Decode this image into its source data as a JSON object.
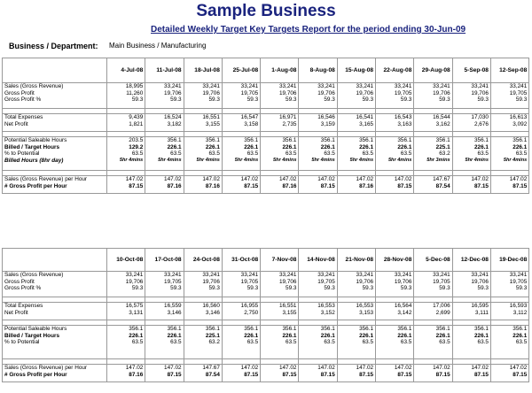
{
  "header": {
    "title": "Sample Business",
    "subtitle": "Detailed Weekly Target Key Targets Report for the period ending 30-Jun-09",
    "dept_label": "Business / Department:",
    "dept_value": "Main Business / Manufacturing"
  },
  "labels": {
    "sales": "Sales (Gross Revenue)",
    "gross_profit": "Gross Profit",
    "gross_profit_pct": "Gross Profit %",
    "total_expenses": "Total Expenses",
    "net_profit": "Net Profit",
    "potential_hours": "Potential Saleable Hours",
    "billed_target": "Billed / Target Hours",
    "pct_potential": "% to Potential",
    "billed_hours": "Billed Hours (8hr day)",
    "sales_per_hour": "Sales (Gross Revenue) per Hour",
    "gp_per_hour": "# Gross Profit per Hour"
  },
  "labels2": {
    "sales": "Sales (Gross Revenue)",
    "gross_profit": "Gross Profit",
    "gross_profit_pct": "Gross Profit %",
    "total_expenses": "Total Expenses",
    "net_profit": "Net Profit",
    "potential_hours": "Potential Saleable Hours",
    "billed_target": "Billed / Target Hours",
    "pct_potential": "% to Potential",
    "billed_hours": "",
    "sales_per_hour": "Sales (Gross Revenue) per Hour",
    "gp_per_hour": "# Gross Profit per Hour"
  },
  "table1": [
    {
      "date": "4-Jul-08",
      "sales": "18,995",
      "gp": "11,260",
      "gp_pct": "59.3",
      "exp": "9,439",
      "net": "1,821",
      "pot": "203.5",
      "billed": "129.2",
      "pct": "63.5",
      "bh": "5hr 4mins",
      "sph": "147.02",
      "gph": "87.15"
    },
    {
      "date": "11-Jul-08",
      "sales": "33,241",
      "gp": "19,706",
      "gp_pct": "59.3",
      "exp": "16,524",
      "net": "3,182",
      "pot": "356.1",
      "billed": "226.1",
      "pct": "63.5",
      "bh": "5hr 4mins",
      "sph": "147.02",
      "gph": "87.16"
    },
    {
      "date": "18-Jul-08",
      "sales": "33,241",
      "gp": "19,706",
      "gp_pct": "59.3",
      "exp": "16,551",
      "net": "3,155",
      "pot": "356.1",
      "billed": "226.1",
      "pct": "63.5",
      "bh": "5hr 4mins",
      "sph": "147.02",
      "gph": "87.16"
    },
    {
      "date": "25-Jul-08",
      "sales": "33,241",
      "gp": "19,705",
      "gp_pct": "59.3",
      "exp": "16,547",
      "net": "3,158",
      "pot": "356.1",
      "billed": "226.1",
      "pct": "63.5",
      "bh": "5hr 4mins",
      "sph": "147.02",
      "gph": "87.15"
    },
    {
      "date": "1-Aug-08",
      "sales": "33,241",
      "gp": "19,706",
      "gp_pct": "59.3",
      "exp": "16,971",
      "net": "2,735",
      "pot": "356.1",
      "billed": "226.1",
      "pct": "63.5",
      "bh": "5hr 4mins",
      "sph": "147.02",
      "gph": "87.16"
    },
    {
      "date": "8-Aug-08",
      "sales": "33,241",
      "gp": "19,706",
      "gp_pct": "59.3",
      "exp": "16,546",
      "net": "3,159",
      "pot": "356.1",
      "billed": "226.1",
      "pct": "63.5",
      "bh": "5hr 4mins",
      "sph": "147.02",
      "gph": "87.15"
    },
    {
      "date": "15-Aug-08",
      "sales": "33,241",
      "gp": "19,706",
      "gp_pct": "59.3",
      "exp": "16,541",
      "net": "3,165",
      "pot": "356.1",
      "billed": "226.1",
      "pct": "63.5",
      "bh": "5hr 4mins",
      "sph": "147.02",
      "gph": "87.16"
    },
    {
      "date": "22-Aug-08",
      "sales": "33,241",
      "gp": "19,705",
      "gp_pct": "59.3",
      "exp": "16,543",
      "net": "3,163",
      "pot": "356.1",
      "billed": "226.1",
      "pct": "63.5",
      "bh": "5hr 4mins",
      "sph": "147.02",
      "gph": "87.15"
    },
    {
      "date": "29-Aug-08",
      "sales": "33,241",
      "gp": "19,706",
      "gp_pct": "59.3",
      "exp": "16,544",
      "net": "3,162",
      "pot": "356.1",
      "billed": "225.1",
      "pct": "63.2",
      "bh": "5hr 3mins",
      "sph": "147.67",
      "gph": "87.54"
    },
    {
      "date": "5-Sep-08",
      "sales": "33,241",
      "gp": "19,706",
      "gp_pct": "59.3",
      "exp": "17,030",
      "net": "2,676",
      "pot": "356.1",
      "billed": "226.1",
      "pct": "63.5",
      "bh": "5hr 4mins",
      "sph": "147.02",
      "gph": "87.15"
    },
    {
      "date": "12-Sep-08",
      "sales": "33,241",
      "gp": "19,705",
      "gp_pct": "59.3",
      "exp": "16,613",
      "net": "3,092",
      "pot": "356.1",
      "billed": "226.1",
      "pct": "63.5",
      "bh": "5hr 4mins",
      "sph": "147.02",
      "gph": "87.15"
    }
  ],
  "table2": [
    {
      "date": "10-Oct-08",
      "sales": "33,241",
      "gp": "19,706",
      "gp_pct": "59.3",
      "exp": "16,575",
      "net": "3,131",
      "pot": "356.1",
      "billed": "226.1",
      "pct": "63.5",
      "bh": "",
      "sph": "147.02",
      "gph": "87.16"
    },
    {
      "date": "17-Oct-08",
      "sales": "33,241",
      "gp": "19,705",
      "gp_pct": "59.3",
      "exp": "16,559",
      "net": "3,146",
      "pot": "356.1",
      "billed": "226.1",
      "pct": "63.5",
      "bh": "",
      "sph": "147.02",
      "gph": "87.15"
    },
    {
      "date": "24-Oct-08",
      "sales": "33,241",
      "gp": "19,706",
      "gp_pct": "59.3",
      "exp": "16,560",
      "net": "3,146",
      "pot": "356.1",
      "billed": "225.1",
      "pct": "63.2",
      "bh": "",
      "sph": "147.67",
      "gph": "87.54"
    },
    {
      "date": "31-Oct-08",
      "sales": "33,241",
      "gp": "19,705",
      "gp_pct": "59.3",
      "exp": "16,955",
      "net": "2,750",
      "pot": "356.1",
      "billed": "226.1",
      "pct": "63.5",
      "bh": "",
      "sph": "147.02",
      "gph": "87.15"
    },
    {
      "date": "7-Nov-08",
      "sales": "33,241",
      "gp": "19,706",
      "gp_pct": "59.3",
      "exp": "16,551",
      "net": "3,155",
      "pot": "356.1",
      "billed": "226.1",
      "pct": "63.5",
      "bh": "",
      "sph": "147.02",
      "gph": "87.15"
    },
    {
      "date": "14-Nov-08",
      "sales": "33,241",
      "gp": "19,705",
      "gp_pct": "59.3",
      "exp": "16,553",
      "net": "3,152",
      "pot": "356.1",
      "billed": "226.1",
      "pct": "63.5",
      "bh": "",
      "sph": "147.02",
      "gph": "87.15"
    },
    {
      "date": "21-Nov-08",
      "sales": "33,241",
      "gp": "19,706",
      "gp_pct": "59.3",
      "exp": "16,553",
      "net": "3,153",
      "pot": "356.1",
      "billed": "226.1",
      "pct": "63.5",
      "bh": "",
      "sph": "147.02",
      "gph": "87.15"
    },
    {
      "date": "28-Nov-08",
      "sales": "33,241",
      "gp": "19,706",
      "gp_pct": "59.3",
      "exp": "16,564",
      "net": "3,142",
      "pot": "356.1",
      "billed": "226.1",
      "pct": "63.5",
      "bh": "",
      "sph": "147.02",
      "gph": "87.15"
    },
    {
      "date": "5-Dec-08",
      "sales": "33,241",
      "gp": "19,705",
      "gp_pct": "59.3",
      "exp": "17,006",
      "net": "2,699",
      "pot": "356.1",
      "billed": "226.1",
      "pct": "63.5",
      "bh": "",
      "sph": "147.02",
      "gph": "87.15"
    },
    {
      "date": "12-Dec-08",
      "sales": "33,241",
      "gp": "19,706",
      "gp_pct": "59.3",
      "exp": "16,595",
      "net": "3,111",
      "pot": "356.1",
      "billed": "226.1",
      "pct": "63.5",
      "bh": "",
      "sph": "147.02",
      "gph": "87.15"
    },
    {
      "date": "19-Dec-08",
      "sales": "33,241",
      "gp": "19,705",
      "gp_pct": "59.3",
      "exp": "16,593",
      "net": "3,112",
      "pot": "356.1",
      "billed": "226.1",
      "pct": "63.5",
      "bh": "",
      "sph": "147.02",
      "gph": "87.15"
    }
  ]
}
